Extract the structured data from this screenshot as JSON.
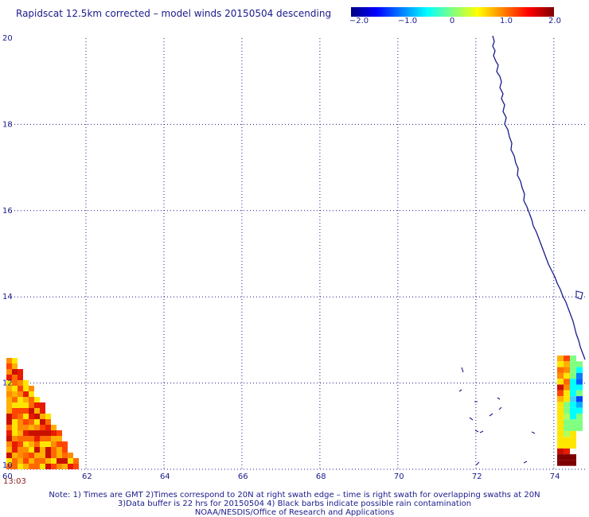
{
  "title": "Rapidscat 12.5km corrected – model winds 20150504 descending",
  "colorbar": {
    "ticks": [
      "−2.0",
      "−1.0",
      "0",
      "1.0",
      "2.0"
    ],
    "colors": [
      "#00007f",
      "#0000ff",
      "#0080ff",
      "#00ffff",
      "#80ff80",
      "#ffff00",
      "#ff8000",
      "#ff0000",
      "#7f0000"
    ]
  },
  "map": {
    "lon_range": [
      60,
      74.8
    ],
    "lat_range": [
      10,
      20
    ],
    "x_ticks": [
      "60",
      "62",
      "64",
      "66",
      "68",
      "70",
      "72",
      "74"
    ],
    "y_ticks": [
      "10",
      "12",
      "14",
      "16",
      "18",
      "20"
    ],
    "grid": "dotted",
    "coastline_color": "#1a1a8c"
  },
  "time_label": "13:03",
  "note": {
    "line1": "Note: 1) Times are GMT 2)Times correspond to 20N at right swath edge – time is right swath for overlapping swaths at 20N",
    "line2": "3)Data buffer is 22 hrs for 20150504 4) Black barbs indicate possible rain contamination",
    "line3": "NOAA/NESDIS/Office of Research and Applications"
  }
}
